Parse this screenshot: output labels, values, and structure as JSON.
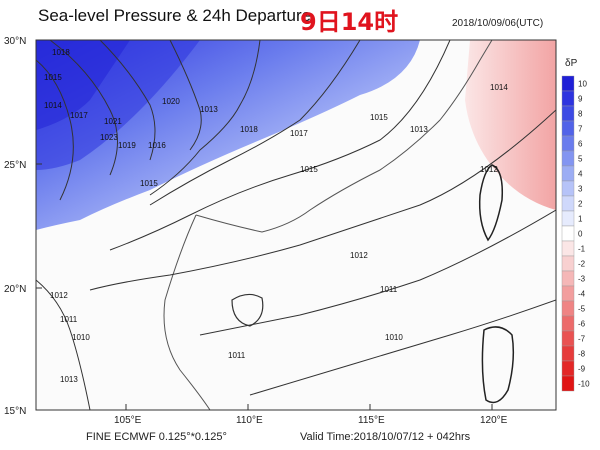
{
  "header": {
    "title": "Sea-level Pressure & 24h Departure",
    "title_cn": "9日14时",
    "timestamp": "2018/10/09/06(UTC)"
  },
  "footer": {
    "model": "FINE ECMWF 0.125°*0.125°",
    "valid_time": "Valid Time:2018/10/07/12 + 042hrs"
  },
  "axes": {
    "lat_labels": [
      "30°N",
      "25°N",
      "20°N",
      "15°N"
    ],
    "lon_labels": [
      "105°E",
      "110°E",
      "115°E",
      "120°E"
    ]
  },
  "colorbar": {
    "title": "δP",
    "levels": [
      "10",
      "9",
      "8",
      "7",
      "6",
      "5",
      "4",
      "3",
      "2",
      "1",
      "0",
      "-1",
      "-2",
      "-3",
      "-4",
      "-5",
      "-6",
      "-7",
      "-8",
      "-9",
      "-10"
    ],
    "colors": [
      "#1f1fd6",
      "#2e34df",
      "#3d4ae4",
      "#5263e8",
      "#6a7ced",
      "#8395f1",
      "#9cadf4",
      "#b6c3f8",
      "#cfd8fb",
      "#e6ebfd",
      "#ffffff",
      "#fbe6e6",
      "#f8d0d0",
      "#f5b7b7",
      "#f29e9e",
      "#ef8484",
      "#ec6b6b",
      "#e95252",
      "#e63b3b",
      "#e32727",
      "#e01414"
    ]
  },
  "isobar_labels": [
    "1018",
    "1015",
    "1014",
    "1017",
    "1021",
    "1020",
    "1019",
    "1016",
    "1013",
    "1012",
    "1011",
    "1010",
    "1023"
  ],
  "colors": {
    "positive_departure": "#3d4ae4",
    "negative_departure": "#ef8484",
    "title_cn": "#e0141e"
  }
}
